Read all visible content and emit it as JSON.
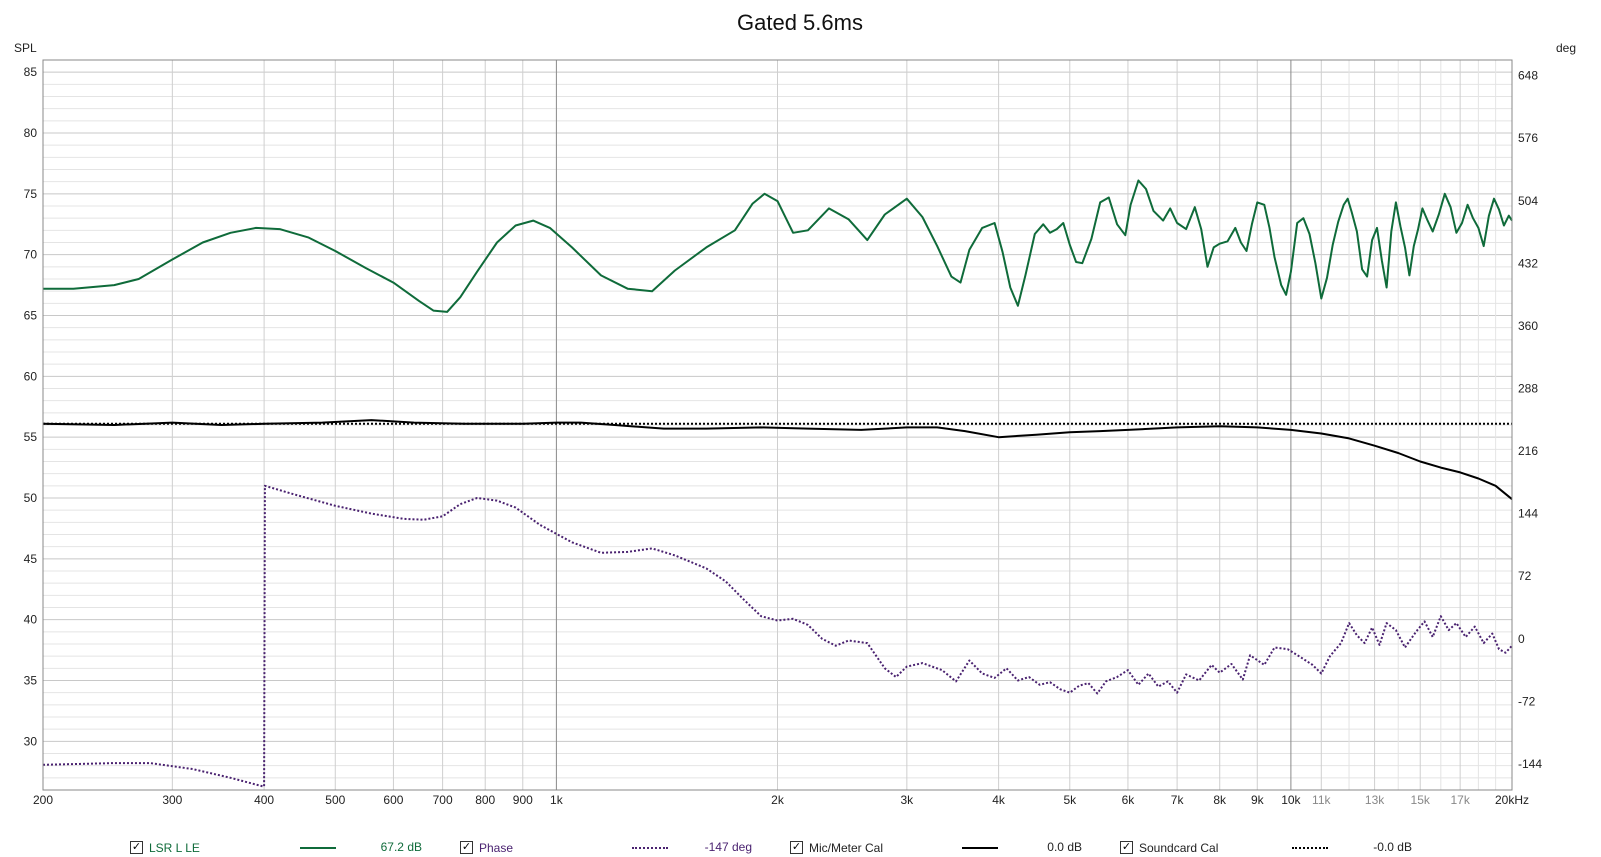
{
  "chart_data": {
    "type": "line",
    "title": "Gated 5.6ms",
    "y_left_label": "SPL",
    "y_right_label": "deg",
    "x_scale": "log",
    "xlim": [
      200,
      20000
    ],
    "ylim_left": [
      26,
      86
    ],
    "ylim_right": [
      -174,
      666
    ],
    "x_ticks": [
      200,
      300,
      400,
      500,
      600,
      700,
      800,
      900,
      1000,
      2000,
      3000,
      4000,
      5000,
      6000,
      7000,
      8000,
      9000,
      10000,
      11000,
      13000,
      15000,
      17000,
      20000
    ],
    "x_tick_labels": [
      "200",
      "300",
      "400",
      "500",
      "600",
      "700",
      "800",
      "900",
      "1k",
      "2k",
      "3k",
      "4k",
      "5k",
      "6k",
      "7k",
      "8k",
      "9k",
      "10k",
      "11k",
      "13k",
      "15k",
      "17k",
      "20kHz"
    ],
    "y_left_ticks": [
      30,
      35,
      40,
      45,
      50,
      55,
      60,
      65,
      70,
      75,
      80,
      85
    ],
    "y_right_ticks": [
      -144,
      -72,
      0,
      72,
      144,
      216,
      288,
      360,
      432,
      504,
      576,
      648
    ],
    "series": [
      {
        "name": "LSR L LE",
        "axis": "left",
        "color": "#0f6b3a",
        "style": "solid",
        "points": [
          [
            200,
            67.2
          ],
          [
            220,
            67.2
          ],
          [
            250,
            67.5
          ],
          [
            270,
            68.0
          ],
          [
            300,
            69.6
          ],
          [
            330,
            71.0
          ],
          [
            360,
            71.8
          ],
          [
            390,
            72.2
          ],
          [
            420,
            72.1
          ],
          [
            460,
            71.4
          ],
          [
            500,
            70.3
          ],
          [
            550,
            68.9
          ],
          [
            600,
            67.7
          ],
          [
            650,
            66.2
          ],
          [
            680,
            65.4
          ],
          [
            710,
            65.3
          ],
          [
            740,
            66.5
          ],
          [
            780,
            68.6
          ],
          [
            830,
            71.0
          ],
          [
            880,
            72.4
          ],
          [
            930,
            72.8
          ],
          [
            980,
            72.2
          ],
          [
            1050,
            70.6
          ],
          [
            1150,
            68.3
          ],
          [
            1250,
            67.2
          ],
          [
            1350,
            67.0
          ],
          [
            1450,
            68.7
          ],
          [
            1600,
            70.6
          ],
          [
            1750,
            72.0
          ],
          [
            1850,
            74.2
          ],
          [
            1920,
            75.0
          ],
          [
            2000,
            74.4
          ],
          [
            2100,
            71.8
          ],
          [
            2200,
            72.0
          ],
          [
            2350,
            73.8
          ],
          [
            2500,
            72.9
          ],
          [
            2650,
            71.2
          ],
          [
            2800,
            73.3
          ],
          [
            3000,
            74.6
          ],
          [
            3150,
            73.1
          ],
          [
            3300,
            70.7
          ],
          [
            3450,
            68.2
          ],
          [
            3550,
            67.7
          ],
          [
            3650,
            70.4
          ],
          [
            3800,
            72.2
          ],
          [
            3950,
            72.6
          ],
          [
            4050,
            70.2
          ],
          [
            4150,
            67.3
          ],
          [
            4250,
            65.8
          ],
          [
            4350,
            68.3
          ],
          [
            4480,
            71.7
          ],
          [
            4600,
            72.5
          ],
          [
            4700,
            71.8
          ],
          [
            4800,
            72.1
          ],
          [
            4900,
            72.6
          ],
          [
            5000,
            70.8
          ],
          [
            5100,
            69.4
          ],
          [
            5200,
            69.3
          ],
          [
            5350,
            71.3
          ],
          [
            5500,
            74.3
          ],
          [
            5650,
            74.7
          ],
          [
            5800,
            72.5
          ],
          [
            5950,
            71.6
          ],
          [
            6050,
            74.1
          ],
          [
            6200,
            76.1
          ],
          [
            6350,
            75.4
          ],
          [
            6500,
            73.6
          ],
          [
            6700,
            72.8
          ],
          [
            6850,
            73.8
          ],
          [
            7000,
            72.6
          ],
          [
            7200,
            72.1
          ],
          [
            7400,
            73.9
          ],
          [
            7550,
            72.1
          ],
          [
            7700,
            69.0
          ],
          [
            7850,
            70.6
          ],
          [
            8000,
            70.9
          ],
          [
            8200,
            71.1
          ],
          [
            8400,
            72.2
          ],
          [
            8550,
            71.0
          ],
          [
            8700,
            70.3
          ],
          [
            8850,
            72.5
          ],
          [
            9000,
            74.3
          ],
          [
            9200,
            74.1
          ],
          [
            9350,
            72.2
          ],
          [
            9500,
            69.8
          ],
          [
            9700,
            67.5
          ],
          [
            9850,
            66.7
          ],
          [
            10000,
            68.6
          ],
          [
            10200,
            72.6
          ],
          [
            10400,
            73.0
          ],
          [
            10600,
            71.7
          ],
          [
            10800,
            69.3
          ],
          [
            11000,
            66.4
          ],
          [
            11200,
            68.1
          ],
          [
            11400,
            70.8
          ],
          [
            11600,
            72.7
          ],
          [
            11800,
            74.1
          ],
          [
            11950,
            74.6
          ],
          [
            12100,
            73.5
          ],
          [
            12300,
            71.9
          ],
          [
            12500,
            68.8
          ],
          [
            12700,
            68.2
          ],
          [
            12900,
            71.2
          ],
          [
            13100,
            72.2
          ],
          [
            13300,
            69.5
          ],
          [
            13500,
            67.3
          ],
          [
            13700,
            71.9
          ],
          [
            13900,
            74.3
          ],
          [
            14100,
            72.3
          ],
          [
            14300,
            70.6
          ],
          [
            14500,
            68.3
          ],
          [
            14700,
            70.7
          ],
          [
            14900,
            72.1
          ],
          [
            15100,
            73.8
          ],
          [
            15350,
            72.8
          ],
          [
            15600,
            71.9
          ],
          [
            15900,
            73.3
          ],
          [
            16200,
            75.0
          ],
          [
            16500,
            73.9
          ],
          [
            16800,
            71.8
          ],
          [
            17100,
            72.6
          ],
          [
            17400,
            74.1
          ],
          [
            17700,
            73.0
          ],
          [
            18000,
            72.2
          ],
          [
            18300,
            70.7
          ],
          [
            18600,
            73.2
          ],
          [
            18900,
            74.6
          ],
          [
            19200,
            73.7
          ],
          [
            19500,
            72.4
          ],
          [
            19800,
            73.2
          ],
          [
            20000,
            72.8
          ]
        ]
      },
      {
        "name": "Phase",
        "axis": "right",
        "color": "#4a2270",
        "style": "dotted",
        "points": [
          [
            200,
            -145
          ],
          [
            250,
            -143
          ],
          [
            280,
            -143
          ],
          [
            320,
            -150
          ],
          [
            360,
            -160
          ],
          [
            399,
            -170
          ],
          [
            400,
            -170
          ],
          [
            401,
            176
          ],
          [
            440,
            166
          ],
          [
            500,
            153
          ],
          [
            560,
            144
          ],
          [
            620,
            138
          ],
          [
            660,
            137
          ],
          [
            700,
            141
          ],
          [
            740,
            155
          ],
          [
            780,
            162
          ],
          [
            830,
            159
          ],
          [
            880,
            151
          ],
          [
            950,
            131
          ],
          [
            1050,
            111
          ],
          [
            1150,
            99
          ],
          [
            1250,
            100
          ],
          [
            1350,
            104
          ],
          [
            1450,
            96
          ],
          [
            1600,
            81
          ],
          [
            1700,
            66
          ],
          [
            1800,
            45
          ],
          [
            1900,
            26
          ],
          [
            2000,
            21
          ],
          [
            2100,
            23
          ],
          [
            2200,
            16
          ],
          [
            2300,
            0
          ],
          [
            2400,
            -8
          ],
          [
            2500,
            -2
          ],
          [
            2650,
            -5
          ],
          [
            2800,
            -34
          ],
          [
            2900,
            -44
          ],
          [
            3000,
            -32
          ],
          [
            3150,
            -28
          ],
          [
            3350,
            -36
          ],
          [
            3500,
            -49
          ],
          [
            3650,
            -25
          ],
          [
            3800,
            -40
          ],
          [
            3950,
            -45
          ],
          [
            4100,
            -34
          ],
          [
            4250,
            -48
          ],
          [
            4400,
            -44
          ],
          [
            4550,
            -53
          ],
          [
            4700,
            -50
          ],
          [
            4850,
            -58
          ],
          [
            5000,
            -62
          ],
          [
            5150,
            -54
          ],
          [
            5300,
            -51
          ],
          [
            5450,
            -63
          ],
          [
            5600,
            -49
          ],
          [
            5800,
            -44
          ],
          [
            6000,
            -36
          ],
          [
            6200,
            -53
          ],
          [
            6400,
            -40
          ],
          [
            6600,
            -55
          ],
          [
            6800,
            -49
          ],
          [
            7000,
            -62
          ],
          [
            7200,
            -41
          ],
          [
            7500,
            -48
          ],
          [
            7800,
            -30
          ],
          [
            8000,
            -39
          ],
          [
            8300,
            -29
          ],
          [
            8600,
            -47
          ],
          [
            8800,
            -19
          ],
          [
            9200,
            -30
          ],
          [
            9500,
            -10
          ],
          [
            9900,
            -12
          ],
          [
            10300,
            -21
          ],
          [
            10700,
            -30
          ],
          [
            11000,
            -40
          ],
          [
            11300,
            -20
          ],
          [
            11700,
            -5
          ],
          [
            12000,
            18
          ],
          [
            12300,
            4
          ],
          [
            12600,
            -5
          ],
          [
            12900,
            13
          ],
          [
            13200,
            -7
          ],
          [
            13500,
            18
          ],
          [
            13900,
            10
          ],
          [
            14300,
            -10
          ],
          [
            14800,
            8
          ],
          [
            15200,
            20
          ],
          [
            15600,
            2
          ],
          [
            16000,
            26
          ],
          [
            16400,
            10
          ],
          [
            16800,
            18
          ],
          [
            17300,
            2
          ],
          [
            17800,
            14
          ],
          [
            18300,
            -5
          ],
          [
            18800,
            6
          ],
          [
            19200,
            -12
          ],
          [
            19600,
            -16
          ],
          [
            20000,
            -8
          ]
        ]
      },
      {
        "name": "Mic/Meter Cal",
        "axis": "left",
        "color": "#000000",
        "style": "solid",
        "points": [
          [
            200,
            56.1
          ],
          [
            250,
            56.0
          ],
          [
            300,
            56.2
          ],
          [
            350,
            56.0
          ],
          [
            400,
            56.1
          ],
          [
            480,
            56.2
          ],
          [
            560,
            56.4
          ],
          [
            640,
            56.2
          ],
          [
            750,
            56.1
          ],
          [
            900,
            56.1
          ],
          [
            1000,
            56.2
          ],
          [
            1080,
            56.2
          ],
          [
            1200,
            56.0
          ],
          [
            1400,
            55.7
          ],
          [
            1600,
            55.7
          ],
          [
            1900,
            55.8
          ],
          [
            2200,
            55.7
          ],
          [
            2600,
            55.6
          ],
          [
            3000,
            55.8
          ],
          [
            3300,
            55.8
          ],
          [
            3600,
            55.5
          ],
          [
            4000,
            55.0
          ],
          [
            4500,
            55.2
          ],
          [
            5000,
            55.4
          ],
          [
            5500,
            55.5
          ],
          [
            6000,
            55.6
          ],
          [
            7000,
            55.8
          ],
          [
            8000,
            55.9
          ],
          [
            9000,
            55.8
          ],
          [
            10000,
            55.6
          ],
          [
            11000,
            55.3
          ],
          [
            12000,
            54.9
          ],
          [
            13000,
            54.3
          ],
          [
            14000,
            53.7
          ],
          [
            15000,
            53.0
          ],
          [
            16000,
            52.5
          ],
          [
            17000,
            52.1
          ],
          [
            18000,
            51.6
          ],
          [
            19000,
            51.0
          ],
          [
            20000,
            49.9
          ]
        ]
      },
      {
        "name": "Soundcard Cal",
        "axis": "left",
        "color": "#000000",
        "style": "dotted",
        "points": [
          [
            200,
            56.1
          ],
          [
            1000,
            56.1
          ],
          [
            5000,
            56.1
          ],
          [
            20000,
            56.1
          ]
        ]
      }
    ],
    "legend": [
      {
        "name": "LSR L LE",
        "value": "67.2 dB",
        "checked": true,
        "color": "#0f6b3a",
        "style": "solid"
      },
      {
        "name": "Phase",
        "value": "-147 deg",
        "checked": true,
        "color": "#4a2270",
        "style": "dotted"
      },
      {
        "name": "Mic/Meter Cal",
        "value": "0.0 dB",
        "checked": true,
        "color": "#000000",
        "style": "solid"
      },
      {
        "name": "Soundcard Cal",
        "value": "-0.0 dB",
        "checked": true,
        "color": "#000000",
        "style": "dotted"
      }
    ]
  }
}
